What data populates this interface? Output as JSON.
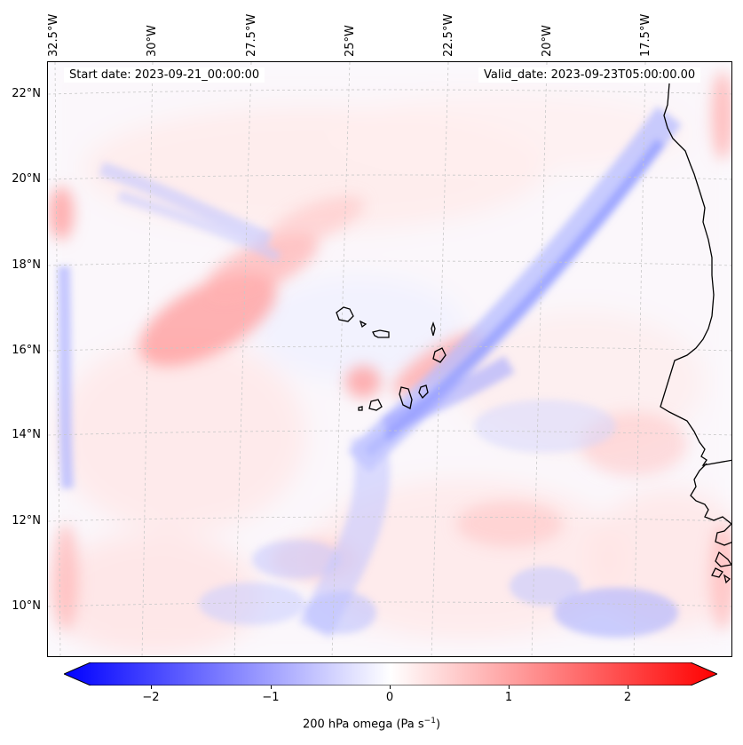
{
  "map": {
    "start_date": "Start date: 2023-09-21_00:00:00",
    "valid_date": "Valid_date: 2023-09-23T05:00:00.00",
    "longitudes": [
      "32.5°W",
      "30°W",
      "27.5°W",
      "25°W",
      "22.5°W",
      "20°W",
      "17.5°W"
    ],
    "latitudes": [
      "22°N",
      "20°N",
      "18°N",
      "16°N",
      "14°N",
      "12°N",
      "10°N"
    ],
    "colors": {
      "negative": "#0000ff",
      "neutral": "#ffffff",
      "positive": "#ff0000",
      "coastline": "#000000",
      "grid": "#bdbdbd"
    }
  },
  "colorbar": {
    "ticks": [
      "−2",
      "−1",
      "0",
      "1",
      "2"
    ],
    "range": [
      -2.75,
      2.75
    ],
    "label": "200 hPa omega (Pa s",
    "label_sup": "−1",
    "label_end": ")"
  }
}
